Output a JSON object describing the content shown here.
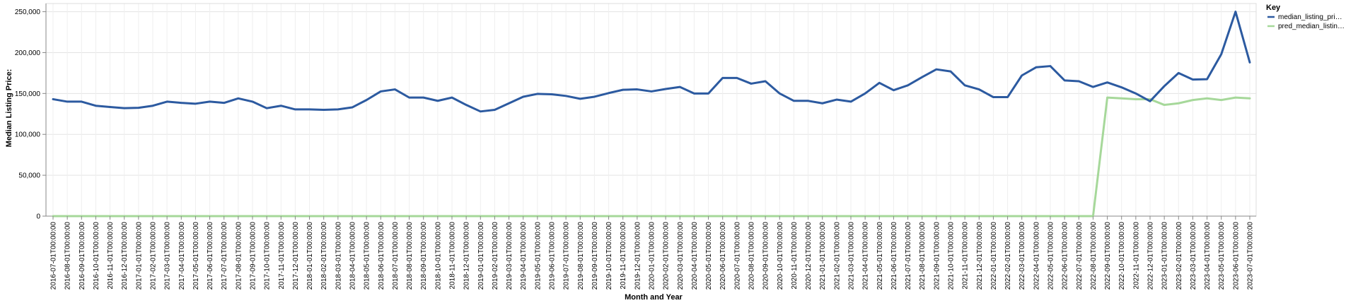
{
  "chart_data": {
    "type": "line",
    "xlabel": "Month and Year",
    "ylabel": "Median Listing Price:",
    "ylim": [
      0,
      260000
    ],
    "yticks": [
      0,
      50000,
      100000,
      150000,
      200000,
      250000
    ],
    "ytick_labels": [
      "0",
      "50,000",
      "100,000",
      "150,000",
      "200,000",
      "250,000"
    ],
    "grid": true,
    "legend": {
      "title": "Key",
      "position": "right"
    },
    "categories": [
      "2016-07-01T00:00:00",
      "2016-08-01T00:00:00",
      "2016-09-01T00:00:00",
      "2016-10-01T00:00:00",
      "2016-11-01T00:00:00",
      "2016-12-01T00:00:00",
      "2017-01-01T00:00:00",
      "2017-02-01T00:00:00",
      "2017-03-01T00:00:00",
      "2017-04-01T00:00:00",
      "2017-05-01T00:00:00",
      "2017-06-01T00:00:00",
      "2017-07-01T00:00:00",
      "2017-08-01T00:00:00",
      "2017-09-01T00:00:00",
      "2017-10-01T00:00:00",
      "2017-11-01T00:00:00",
      "2017-12-01T00:00:00",
      "2018-01-01T00:00:00",
      "2018-02-01T00:00:00",
      "2018-03-01T00:00:00",
      "2018-04-01T00:00:00",
      "2018-05-01T00:00:00",
      "2018-06-01T00:00:00",
      "2018-07-01T00:00:00",
      "2018-08-01T00:00:00",
      "2018-09-01T00:00:00",
      "2018-10-01T00:00:00",
      "2018-11-01T00:00:00",
      "2018-12-01T00:00:00",
      "2019-01-01T00:00:00",
      "2019-02-01T00:00:00",
      "2019-03-01T00:00:00",
      "2019-04-01T00:00:00",
      "2019-05-01T00:00:00",
      "2019-06-01T00:00:00",
      "2019-07-01T00:00:00",
      "2019-08-01T00:00:00",
      "2019-09-01T00:00:00",
      "2019-10-01T00:00:00",
      "2019-11-01T00:00:00",
      "2019-12-01T00:00:00",
      "2020-01-01T00:00:00",
      "2020-02-01T00:00:00",
      "2020-03-01T00:00:00",
      "2020-04-01T00:00:00",
      "2020-05-01T00:00:00",
      "2020-06-01T00:00:00",
      "2020-07-01T00:00:00",
      "2020-08-01T00:00:00",
      "2020-09-01T00:00:00",
      "2020-10-01T00:00:00",
      "2020-11-01T00:00:00",
      "2020-12-01T00:00:00",
      "2021-01-01T00:00:00",
      "2021-02-01T00:00:00",
      "2021-03-01T00:00:00",
      "2021-04-01T00:00:00",
      "2021-05-01T00:00:00",
      "2021-06-01T00:00:00",
      "2021-07-01T00:00:00",
      "2021-08-01T00:00:00",
      "2021-09-01T00:00:00",
      "2021-10-01T00:00:00",
      "2021-11-01T00:00:00",
      "2021-12-01T00:00:00",
      "2022-01-01T00:00:00",
      "2022-02-01T00:00:00",
      "2022-03-01T00:00:00",
      "2022-04-01T00:00:00",
      "2022-05-01T00:00:00",
      "2022-06-01T00:00:00",
      "2022-07-01T00:00:00",
      "2022-08-01T00:00:00",
      "2022-09-01T00:00:00",
      "2022-10-01T00:00:00",
      "2022-11-01T00:00:00",
      "2022-12-01T00:00:00",
      "2023-01-01T00:00:00",
      "2023-02-01T00:00:00",
      "2023-03-01T00:00:00",
      "2023-04-01T00:00:00",
      "2023-05-01T00:00:00",
      "2023-06-01T00:00:00",
      "2023-07-01T00:00:00"
    ],
    "series": [
      {
        "name": "median_listing_pri…",
        "color": "#2c5aa0",
        "values": [
          143000,
          140000,
          140000,
          135000,
          133500,
          132000,
          132500,
          135000,
          140000,
          138500,
          137500,
          140000,
          138500,
          144000,
          140000,
          132000,
          135000,
          130500,
          130500,
          130000,
          130500,
          133000,
          142000,
          152500,
          155000,
          145000,
          145000,
          141000,
          145000,
          136000,
          128000,
          130000,
          138000,
          146000,
          149500,
          149000,
          147000,
          143500,
          146000,
          150500,
          154500,
          155000,
          152500,
          155500,
          158000,
          150000,
          150000,
          169000,
          169000,
          162000,
          165000,
          150000,
          141000,
          141000,
          138000,
          142500,
          140000,
          150000,
          163000,
          154000,
          160000,
          170000,
          179500,
          177000,
          160000,
          155000,
          145500,
          145500,
          172000,
          182000,
          183500,
          166000,
          165000,
          158000,
          163500,
          157500,
          150000,
          140500,
          159000,
          175000,
          167000,
          167500,
          198000,
          250000,
          188000
        ]
      },
      {
        "name": "pred_median_listin…",
        "color": "#a6d89a",
        "values": [
          0,
          0,
          0,
          0,
          0,
          0,
          0,
          0,
          0,
          0,
          0,
          0,
          0,
          0,
          0,
          0,
          0,
          0,
          0,
          0,
          0,
          0,
          0,
          0,
          0,
          0,
          0,
          0,
          0,
          0,
          0,
          0,
          0,
          0,
          0,
          0,
          0,
          0,
          0,
          0,
          0,
          0,
          0,
          0,
          0,
          0,
          0,
          0,
          0,
          0,
          0,
          0,
          0,
          0,
          0,
          0,
          0,
          0,
          0,
          0,
          0,
          0,
          0,
          0,
          0,
          0,
          0,
          0,
          0,
          0,
          0,
          0,
          0,
          0,
          145000,
          144000,
          143000,
          143000,
          136000,
          138000,
          142000,
          144000,
          142000,
          145000,
          144000
        ]
      }
    ]
  }
}
